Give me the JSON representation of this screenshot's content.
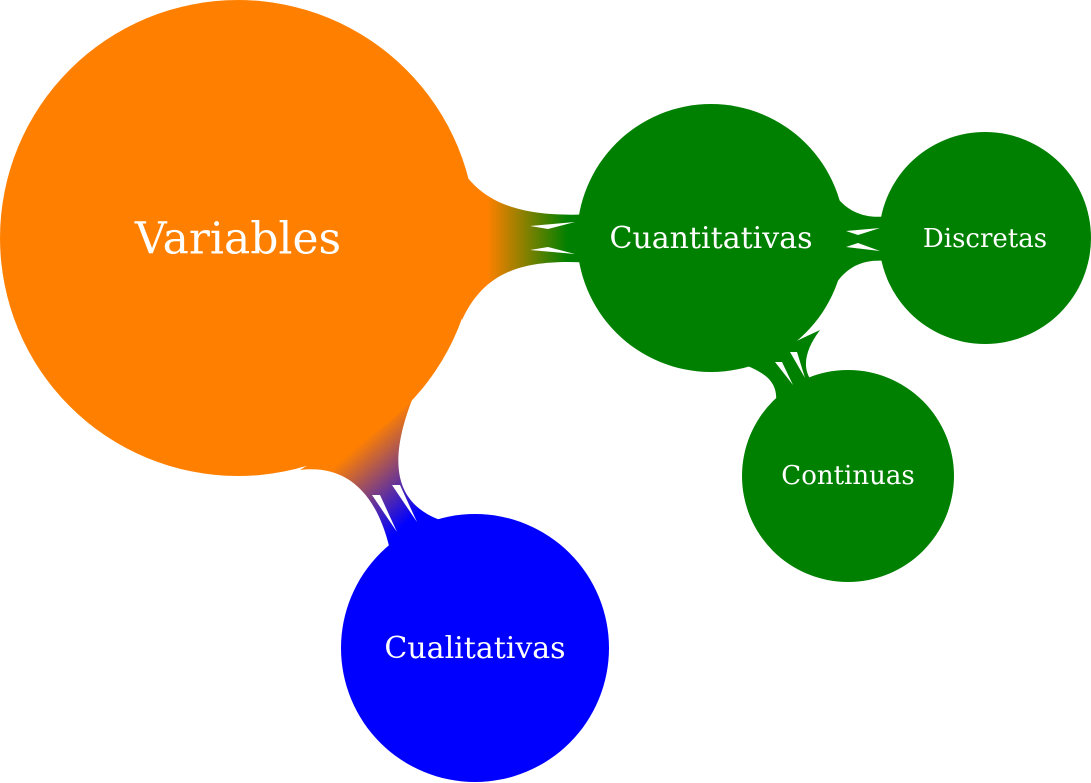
{
  "mindmap": {
    "root": {
      "label": "Variables",
      "color": "#ff8000"
    },
    "branches": [
      {
        "label": "Cuantitativas",
        "color": "#008000",
        "children": [
          {
            "label": "Discretas",
            "color": "#008000"
          },
          {
            "label": "Continuas",
            "color": "#008000"
          }
        ]
      },
      {
        "label": "Cualitativas",
        "color": "#0000ff",
        "children": []
      }
    ]
  }
}
